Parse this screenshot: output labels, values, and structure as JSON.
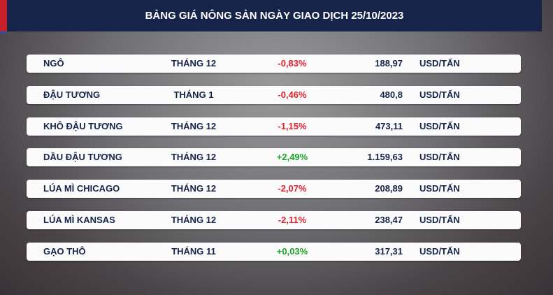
{
  "header": {
    "title": "BẢNG GIÁ NÔNG SẢN NGÀY GIAO DỊCH 25/10/2023"
  },
  "table": {
    "rows": [
      [
        "NGÔ",
        "THÁNG 12",
        "-0,83%",
        "188,97",
        "USD/TẤN"
      ],
      [
        "ĐẬU TƯƠNG",
        "THÁNG 1",
        "-0,46%",
        "480,8",
        "USD/TẤN"
      ],
      [
        "KHÔ ĐẬU TƯƠNG",
        "THÁNG 12",
        "-1,15%",
        "473,11",
        "USD/TẤN"
      ],
      [
        "DẦU ĐẬU TƯƠNG",
        "THÁNG 12",
        "+2,49%",
        "1.159,63",
        "USD/TẤN"
      ],
      [
        "LÚA MÌ CHICAGO",
        "THÁNG 12",
        "-2,07%",
        "208,89",
        "USD/TẤN"
      ],
      [
        "LÚA MÌ KANSAS",
        "THÁNG 12",
        "-2,11%",
        "238,47",
        "USD/TẤN"
      ],
      [
        "GẠO THÔ",
        "THÁNG 11",
        "+0,03%",
        "317,31",
        "USD/TẤN"
      ]
    ]
  }
}
